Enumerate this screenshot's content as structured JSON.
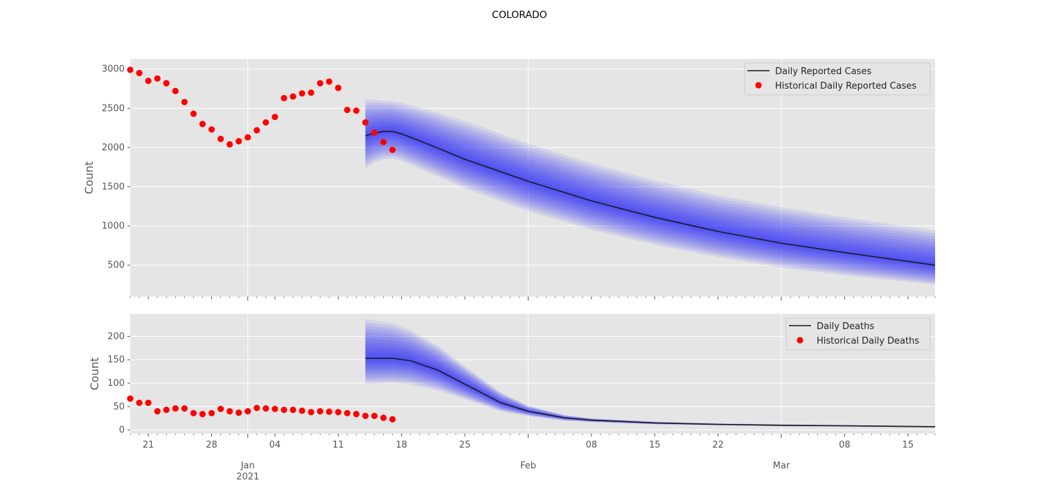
{
  "chart_data": {
    "title": "COLORADO",
    "type": "line",
    "dates": {
      "start": "2020-12-19",
      "end": "2021-03-18",
      "major_ticks": [
        {
          "date": "2021-01-01",
          "label": "Jan",
          "sublabel": "2021"
        },
        {
          "date": "2021-02-01",
          "label": "Feb",
          "sublabel": ""
        },
        {
          "date": "2021-03-01",
          "label": "Mar",
          "sublabel": ""
        }
      ],
      "minor_ticks": [
        {
          "date": "2020-12-21",
          "label": "21"
        },
        {
          "date": "2020-12-28",
          "label": "28"
        },
        {
          "date": "2021-01-04",
          "label": "04"
        },
        {
          "date": "2021-01-11",
          "label": "11"
        },
        {
          "date": "2021-01-18",
          "label": "18"
        },
        {
          "date": "2021-01-25",
          "label": "25"
        },
        {
          "date": "2021-02-08",
          "label": "08"
        },
        {
          "date": "2021-02-15",
          "label": "15"
        },
        {
          "date": "2021-02-22",
          "label": "22"
        },
        {
          "date": "2021-03-08",
          "label": "08"
        },
        {
          "date": "2021-03-15",
          "label": "15"
        }
      ]
    },
    "panels": [
      {
        "id": "cases",
        "ylabel": "Count",
        "ylim": [
          100,
          3130
        ],
        "yticks": [
          500,
          1000,
          1500,
          2000,
          2500,
          3000
        ],
        "legend_position": "top-right",
        "forecast": {
          "name": "Daily Reported Cases",
          "color": "#1a1a1a",
          "band_color": "#0000ff",
          "points": [
            {
              "date": "2021-01-14",
              "median": 2150,
              "lo": 1730,
              "hi": 2610
            },
            {
              "date": "2021-01-15",
              "median": 2180,
              "lo": 1810,
              "hi": 2610
            },
            {
              "date": "2021-01-16",
              "median": 2205,
              "lo": 1850,
              "hi": 2600
            },
            {
              "date": "2021-01-17",
              "median": 2205,
              "lo": 1860,
              "hi": 2590
            },
            {
              "date": "2021-01-18",
              "median": 2175,
              "lo": 1830,
              "hi": 2570
            },
            {
              "date": "2021-01-21",
              "median": 2040,
              "lo": 1680,
              "hi": 2480
            },
            {
              "date": "2021-01-25",
              "median": 1850,
              "lo": 1480,
              "hi": 2340
            },
            {
              "date": "2021-02-01",
              "median": 1570,
              "lo": 1190,
              "hi": 2050
            },
            {
              "date": "2021-02-08",
              "median": 1320,
              "lo": 950,
              "hi": 1800
            },
            {
              "date": "2021-02-15",
              "median": 1110,
              "lo": 760,
              "hi": 1580
            },
            {
              "date": "2021-02-22",
              "median": 930,
              "lo": 600,
              "hi": 1390
            },
            {
              "date": "2021-03-01",
              "median": 780,
              "lo": 470,
              "hi": 1240
            },
            {
              "date": "2021-03-08",
              "median": 660,
              "lo": 370,
              "hi": 1110
            },
            {
              "date": "2021-03-18",
              "median": 500,
              "lo": 250,
              "hi": 940
            }
          ]
        },
        "historical": {
          "name": "Historical Daily Reported Cases",
          "color": "#ff0000",
          "start": "2020-12-19",
          "values": [
            2990,
            2950,
            2850,
            2880,
            2820,
            2720,
            2580,
            2430,
            2300,
            2230,
            2110,
            2040,
            2080,
            2130,
            2220,
            2320,
            2390,
            2630,
            2650,
            2690,
            2700,
            2820,
            2840,
            2760,
            2480,
            2470,
            2320,
            2190,
            2070,
            1970
          ]
        }
      },
      {
        "id": "deaths",
        "ylabel": "Count",
        "ylim": [
          -8,
          248
        ],
        "yticks": [
          0,
          50,
          100,
          150,
          200
        ],
        "legend_position": "top-right",
        "forecast": {
          "name": "Daily Deaths",
          "color": "#1a1a1a",
          "band_color": "#0000ff",
          "points": [
            {
              "date": "2021-01-14",
              "median": 153,
              "lo": 98,
              "hi": 237
            },
            {
              "date": "2021-01-17",
              "median": 153,
              "lo": 100,
              "hi": 228
            },
            {
              "date": "2021-01-19",
              "median": 148,
              "lo": 97,
              "hi": 213
            },
            {
              "date": "2021-01-22",
              "median": 128,
              "lo": 85,
              "hi": 180
            },
            {
              "date": "2021-01-25",
              "median": 98,
              "lo": 66,
              "hi": 136
            },
            {
              "date": "2021-01-29",
              "median": 58,
              "lo": 40,
              "hi": 80
            },
            {
              "date": "2021-02-01",
              "median": 40,
              "lo": 30,
              "hi": 52
            },
            {
              "date": "2021-02-05",
              "median": 26,
              "lo": 20,
              "hi": 32
            },
            {
              "date": "2021-02-08",
              "median": 21,
              "lo": 17,
              "hi": 25
            },
            {
              "date": "2021-02-15",
              "median": 15,
              "lo": 12,
              "hi": 18
            },
            {
              "date": "2021-02-22",
              "median": 12,
              "lo": 10,
              "hi": 14
            },
            {
              "date": "2021-03-01",
              "median": 10,
              "lo": 8,
              "hi": 12
            },
            {
              "date": "2021-03-08",
              "median": 9,
              "lo": 7,
              "hi": 10.5
            },
            {
              "date": "2021-03-18",
              "median": 7,
              "lo": 5.5,
              "hi": 8.5
            }
          ]
        },
        "historical": {
          "name": "Historical Daily Deaths",
          "color": "#ff0000",
          "start": "2020-12-19",
          "values": [
            67,
            58,
            58,
            40,
            43,
            46,
            46,
            36,
            34,
            36,
            45,
            40,
            37,
            40,
            47,
            46,
            45,
            43,
            43,
            41,
            38,
            40,
            39,
            38,
            36,
            34,
            30,
            30,
            26,
            23
          ]
        }
      }
    ]
  }
}
